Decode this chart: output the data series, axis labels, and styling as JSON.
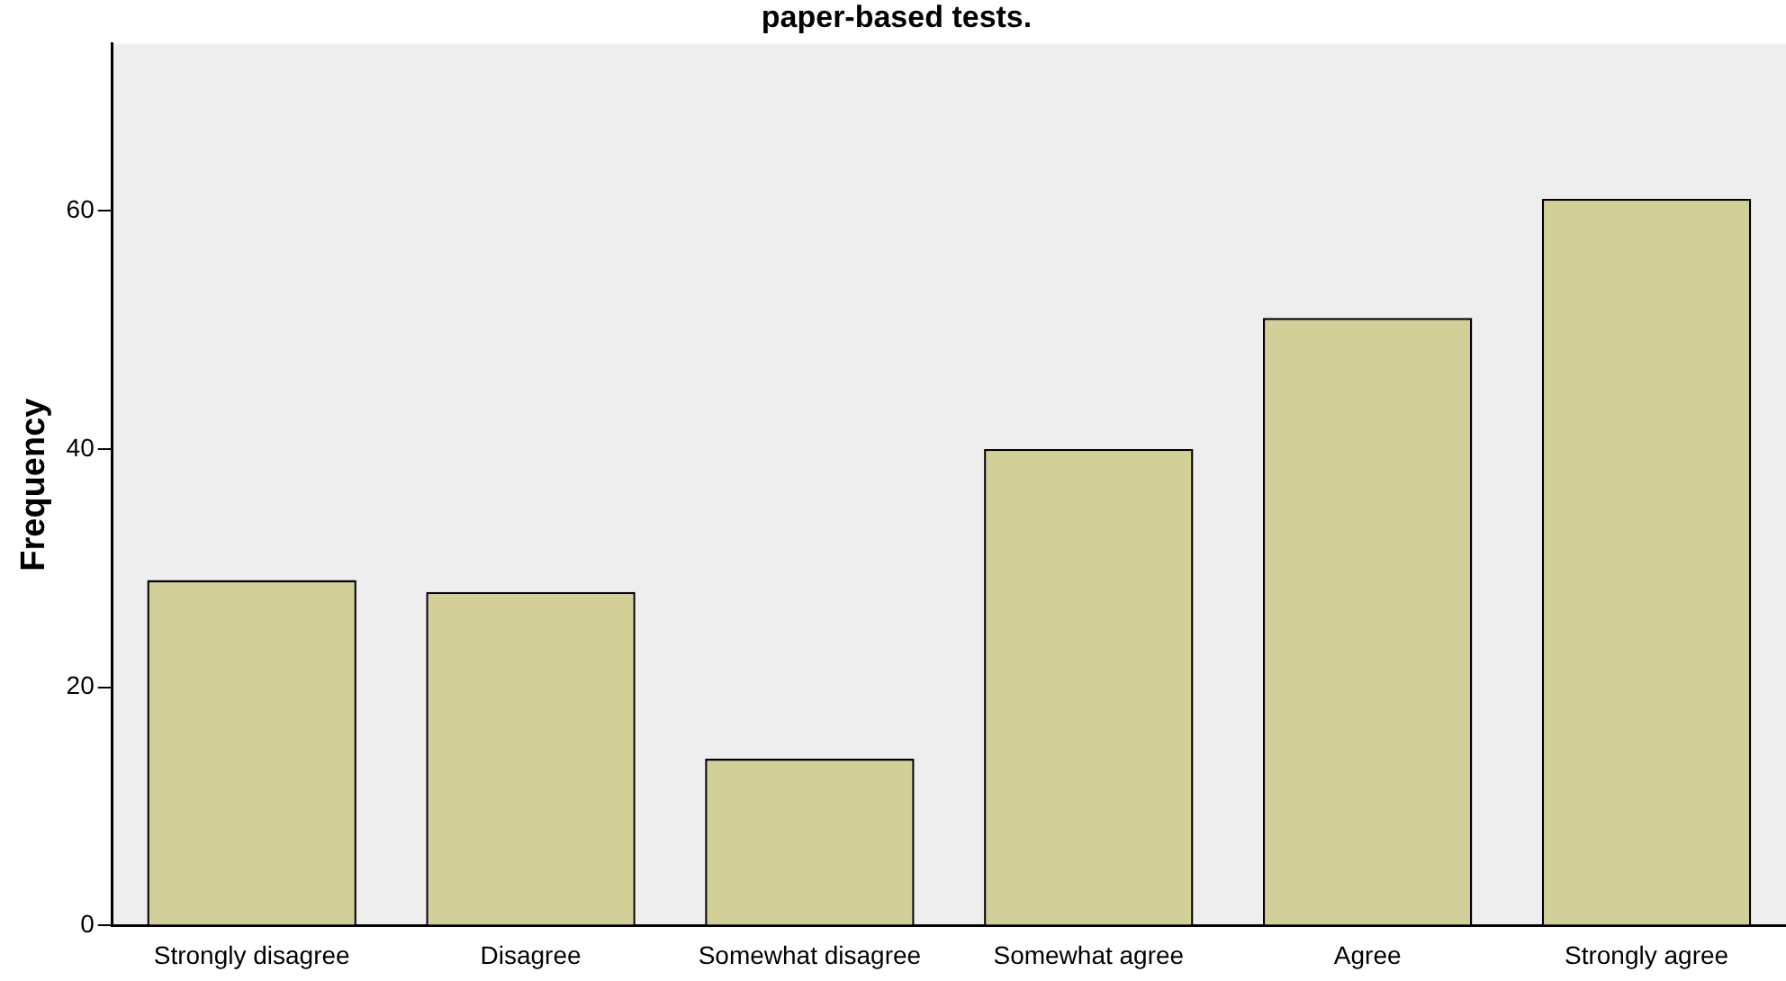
{
  "chart_data": {
    "type": "bar",
    "title": "paper-based tests.",
    "ylabel": "Frequency",
    "categories": [
      "Strongly disagree",
      "Disagree",
      "Somewhat disagree",
      "Somewhat agree",
      "Agree",
      "Strongly agree"
    ],
    "values": [
      29,
      28,
      14,
      40,
      51,
      61
    ],
    "color": "#d3cf99",
    "ylim": [
      0,
      74
    ],
    "yticks": [
      0,
      20,
      40,
      60
    ],
    "grid": false,
    "legend": false
  }
}
